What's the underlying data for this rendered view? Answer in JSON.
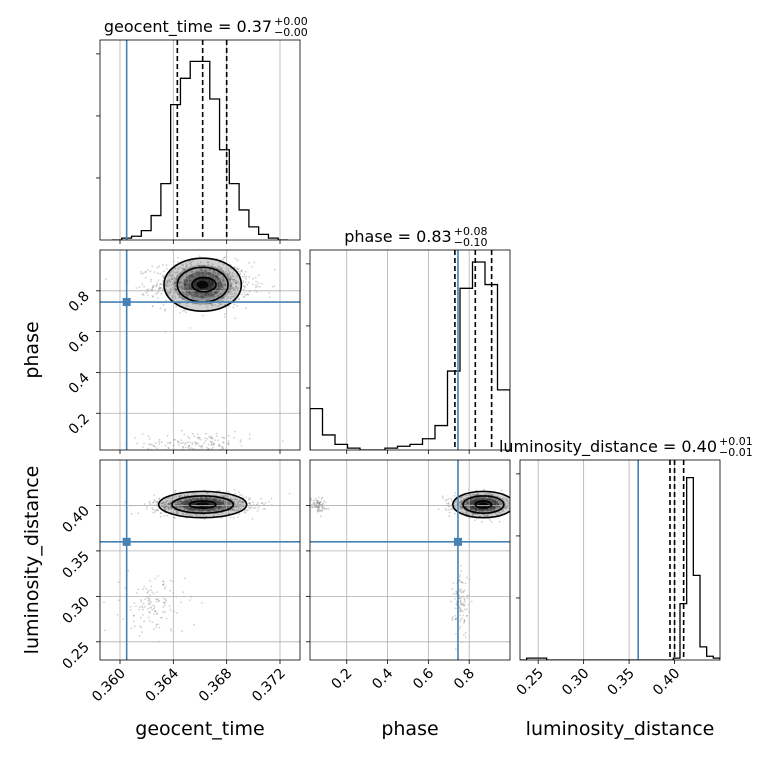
{
  "chart_data": {
    "type": "corner",
    "parameters": [
      "geocent_time",
      "phase",
      "luminosity_distance"
    ],
    "titles": [
      {
        "name": "geocent_time",
        "median": "0.37",
        "plus": "+0.00",
        "minus": "−0.00"
      },
      {
        "name": "phase",
        "median": "0.83",
        "plus": "+0.08",
        "minus": "−0.10"
      },
      {
        "name": "luminosity_distance",
        "median": "0.40",
        "plus": "+0.01",
        "minus": "−0.01"
      }
    ],
    "axis_labels": {
      "x": [
        "geocent_time",
        "phase",
        "luminosity_distance"
      ],
      "y": [
        "phase",
        "luminosity_distance"
      ]
    },
    "ranges": {
      "geocent_time": [
        0.3585,
        0.3735
      ],
      "phase": [
        0.02,
        1.0
      ],
      "luminosity_distance": [
        0.23,
        0.45
      ]
    },
    "ticks": {
      "geocent_time": {
        "values": [
          0.36,
          0.364,
          0.368,
          0.372
        ],
        "labels": [
          "0.360",
          "0.364",
          "0.368",
          "0.372"
        ]
      },
      "phase": {
        "values": [
          0.2,
          0.4,
          0.6,
          0.8
        ],
        "labels": [
          "0.2",
          "0.4",
          "0.6",
          "0.8"
        ]
      },
      "luminosity_distance": {
        "values": [
          0.25,
          0.3,
          0.35,
          0.4
        ],
        "labels": [
          "0.25",
          "0.30",
          "0.35",
          "0.40"
        ]
      }
    },
    "truths": {
      "geocent_time": 0.3605,
      "phase": 0.745,
      "luminosity_distance": 0.36
    },
    "quantiles": {
      "geocent_time": [
        0.3643,
        0.3662,
        0.368
      ],
      "phase": [
        0.73,
        0.83,
        0.91
      ],
      "luminosity_distance": [
        0.395,
        0.4,
        0.41
      ]
    },
    "histograms": {
      "geocent_time": [
        0.0,
        0.01,
        0.02,
        0.05,
        0.13,
        0.3,
        0.72,
        0.86,
        0.95,
        0.95,
        0.75,
        0.48,
        0.3,
        0.16,
        0.07,
        0.03,
        0.01,
        0.0
      ],
      "phase": [
        0.22,
        0.08,
        0.03,
        0.01,
        0.0,
        0.0,
        0.01,
        0.02,
        0.03,
        0.06,
        0.13,
        0.42,
        0.86,
        1.0,
        0.88,
        0.32
      ],
      "luminosity_distance": [
        0.0,
        0.01,
        0.01,
        0.01,
        0.0,
        0.0,
        0.0,
        0.0,
        0.0,
        0.0,
        0.0,
        0.0,
        0.0,
        0.0,
        0.0,
        0.0,
        0.0,
        0.0,
        0.0,
        0.0,
        0.0,
        0.0,
        0.0,
        0.01,
        0.3,
        0.97,
        0.45,
        0.07,
        0.02,
        0.01
      ]
    },
    "grid": true
  }
}
